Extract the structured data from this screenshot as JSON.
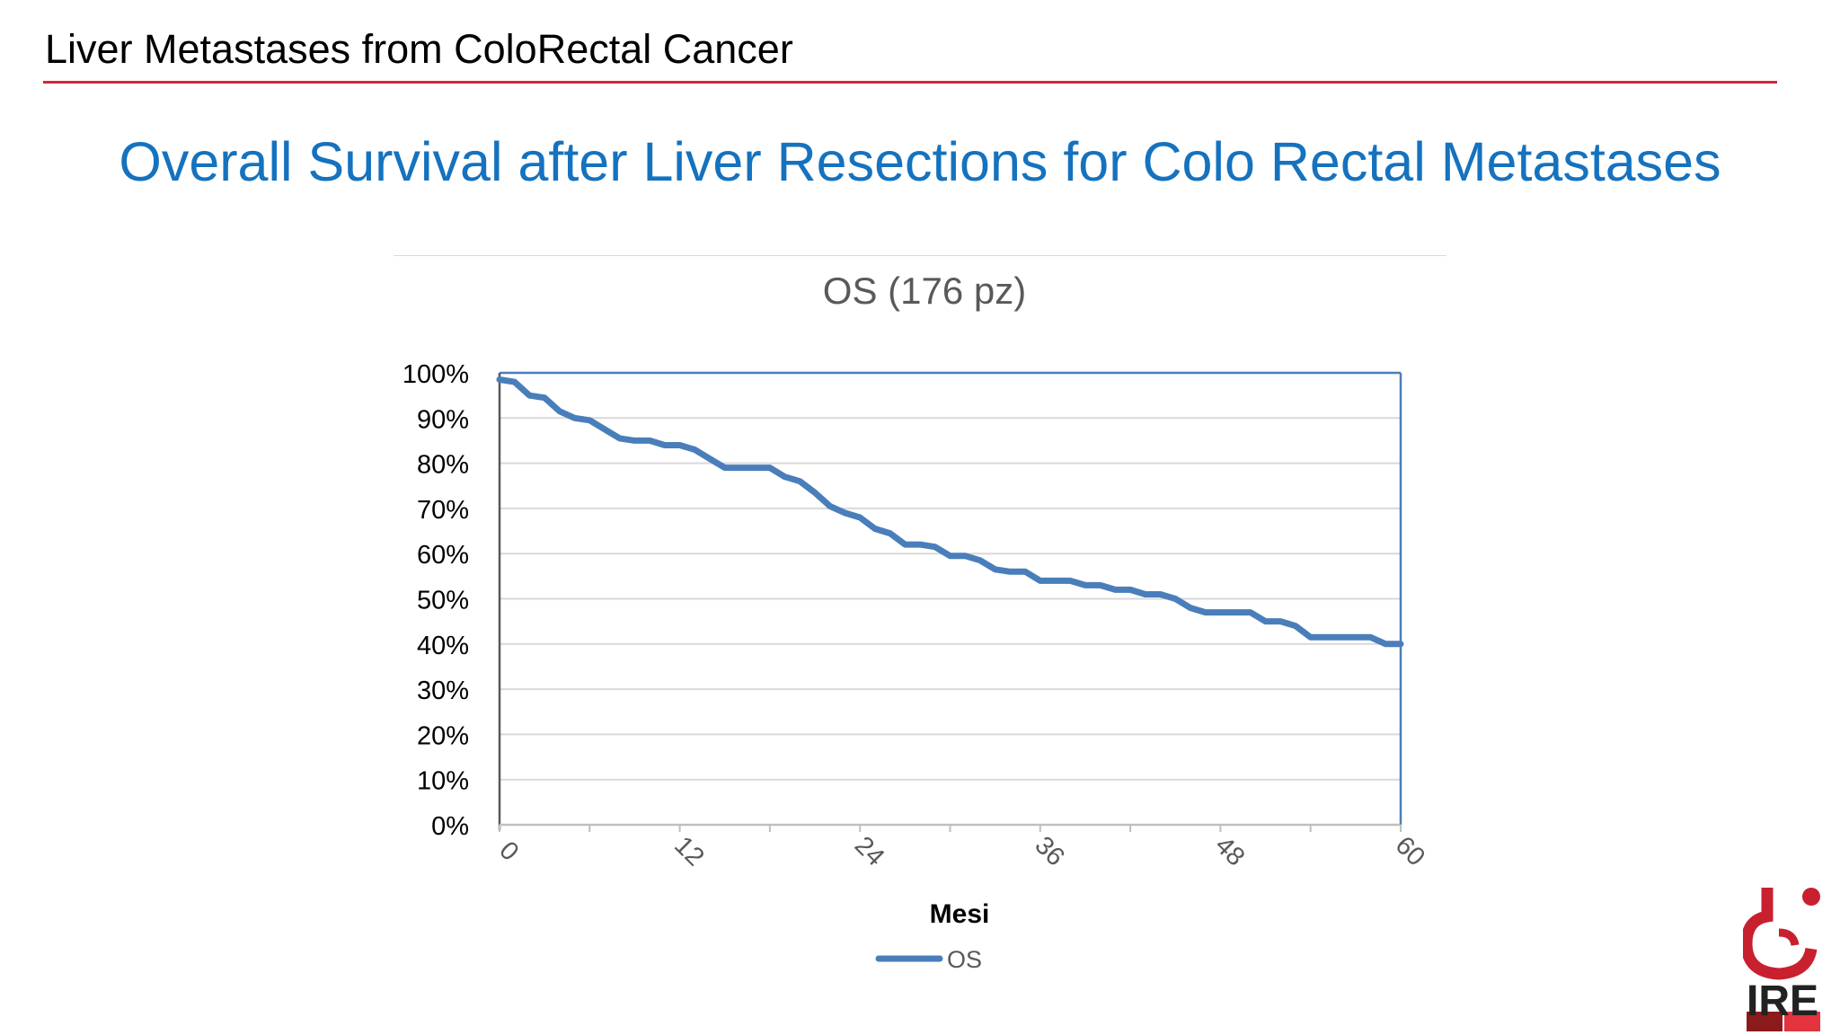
{
  "header": {
    "title": "Liver Metastases from ColoRectal Cancer",
    "rule_color": "#d22636"
  },
  "slide": {
    "title": "Overall Survival after Liver Resections for Colo Rectal Metastases",
    "title_color": "#1572be"
  },
  "chart_data": {
    "type": "line",
    "title": "OS (176 pz)",
    "xlabel": "Mesi",
    "ylabel": "",
    "xlim": [
      0,
      60
    ],
    "ylim": [
      0,
      100
    ],
    "x_ticks": [
      "0",
      "12",
      "24",
      "36",
      "48",
      "60"
    ],
    "y_ticks": [
      "0%",
      "10%",
      "20%",
      "30%",
      "40%",
      "50%",
      "60%",
      "70%",
      "80%",
      "90%",
      "100%"
    ],
    "grid": true,
    "legend_position": "bottom",
    "line_color": "#4a7ebb",
    "series": [
      {
        "name": "OS",
        "x": [
          0,
          1,
          2,
          3,
          4,
          5,
          6,
          7,
          8,
          9,
          10,
          11,
          12,
          13,
          14,
          15,
          16,
          17,
          18,
          19,
          20,
          21,
          22,
          23,
          24,
          25,
          26,
          27,
          28,
          29,
          30,
          31,
          32,
          33,
          34,
          35,
          36,
          37,
          38,
          39,
          40,
          41,
          42,
          43,
          44,
          45,
          46,
          47,
          48,
          49,
          50,
          51,
          52,
          53,
          54,
          55,
          56,
          57,
          58,
          59,
          60
        ],
        "y": [
          98.5,
          98,
          95,
          94.5,
          91.5,
          90,
          89.5,
          87.5,
          85.5,
          85,
          85,
          84,
          84,
          83,
          81,
          79,
          79,
          79,
          79,
          77,
          76,
          73.5,
          70.5,
          69,
          68,
          65.5,
          64.5,
          62,
          62,
          61.5,
          59.5,
          59.5,
          58.5,
          56.5,
          56,
          56,
          54,
          54,
          54,
          53,
          53,
          52,
          52,
          51,
          51,
          50,
          48,
          47,
          47,
          47,
          47,
          45,
          45,
          44,
          41.5,
          41.5,
          41.5,
          41.5,
          41.5,
          40,
          40
        ]
      }
    ]
  },
  "logo": {
    "text": "IRE",
    "colors": [
      "#c8202f",
      "#8b1a1a",
      "#222222"
    ]
  }
}
